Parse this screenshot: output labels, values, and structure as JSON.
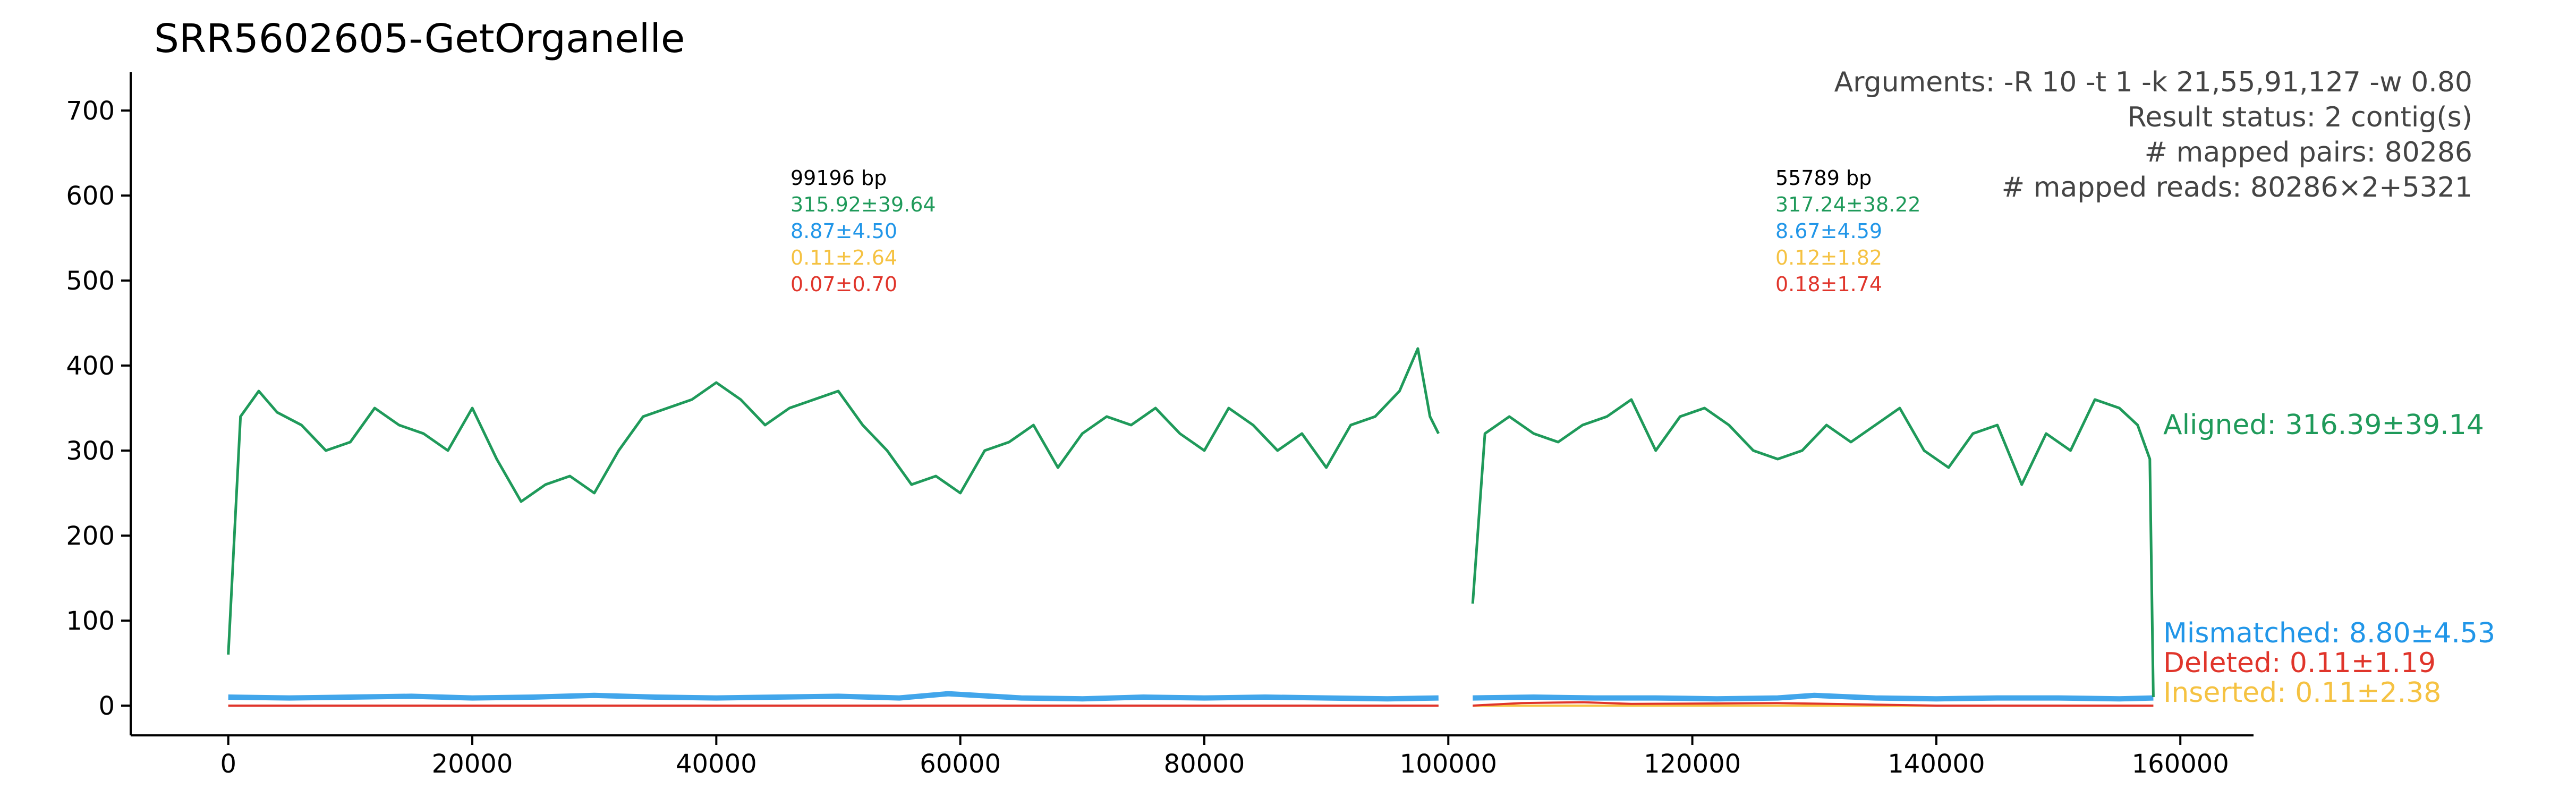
{
  "title": "SRR5602605-GetOrganelle",
  "info": {
    "arguments": "Arguments: -R 10 -t 1 -k 21,55,91,127 -w 0.80",
    "result_status": "Result status: 2 contig(s)",
    "mapped_pairs": "# mapped pairs: 80286",
    "mapped_reads": "# mapped reads: 80286×2+5321"
  },
  "contigs": [
    {
      "length": "99196 bp",
      "aligned": "315.92±39.64",
      "mismatched": "8.87±4.50",
      "inserted": "0.11±2.64",
      "deleted": "0.07±0.70"
    },
    {
      "length": "55789 bp",
      "aligned": "317.24±38.22",
      "mismatched": "8.67±4.59",
      "inserted": "0.12±1.82",
      "deleted": "0.18±1.74"
    }
  ],
  "legend": {
    "aligned": "Aligned: 316.39±39.14",
    "mismatched": "Mismatched: 8.80±4.53",
    "deleted": "Deleted: 0.11±1.19",
    "inserted": "Inserted: 0.11±2.38"
  },
  "colors": {
    "aligned": "#1f9a5a",
    "mismatched": "#2196e8",
    "deleted": "#e0352b",
    "inserted": "#f5c242",
    "axis": "#000000",
    "info_text": "#444444"
  },
  "chart_data": {
    "type": "scatter",
    "title": "SRR5602605-GetOrganelle",
    "xlabel": "",
    "ylabel": "",
    "xlim": [
      -8000,
      166000
    ],
    "ylim": [
      -35,
      745
    ],
    "xticks": [
      0,
      20000,
      40000,
      60000,
      80000,
      100000,
      120000,
      140000,
      160000
    ],
    "yticks": [
      0,
      100,
      200,
      300,
      400,
      500,
      600,
      700
    ],
    "grid": false,
    "contig_ranges": [
      [
        0,
        99196
      ],
      [
        102000,
        157789
      ]
    ],
    "series": [
      {
        "name": "Aligned: 316.39±39.14",
        "color": "#1f9a5a",
        "x": [
          0,
          1000,
          2500,
          4000,
          6000,
          8000,
          10000,
          12000,
          14000,
          16000,
          18000,
          20000,
          22000,
          24000,
          26000,
          28000,
          30000,
          32000,
          34000,
          36000,
          38000,
          40000,
          42000,
          44000,
          46000,
          48000,
          50000,
          52000,
          54000,
          56000,
          58000,
          60000,
          62000,
          64000,
          66000,
          68000,
          70000,
          72000,
          74000,
          76000,
          78000,
          80000,
          82000,
          84000,
          86000,
          88000,
          90000,
          92000,
          94000,
          96000,
          97500,
          98500,
          99196,
          102000,
          103000,
          105000,
          107000,
          109000,
          111000,
          113000,
          115000,
          117000,
          119000,
          121000,
          123000,
          125000,
          127000,
          129000,
          131000,
          133000,
          135000,
          137000,
          139000,
          141000,
          143000,
          145000,
          147000,
          149000,
          151000,
          153000,
          155000,
          156500,
          157500,
          157789
        ],
        "values": [
          60,
          340,
          370,
          345,
          330,
          300,
          310,
          350,
          330,
          320,
          300,
          350,
          290,
          240,
          260,
          270,
          250,
          300,
          340,
          350,
          360,
          380,
          360,
          330,
          350,
          360,
          370,
          330,
          300,
          260,
          270,
          250,
          300,
          310,
          330,
          280,
          320,
          340,
          330,
          350,
          320,
          300,
          350,
          330,
          300,
          320,
          280,
          330,
          340,
          370,
          420,
          340,
          320,
          120,
          320,
          340,
          320,
          310,
          330,
          340,
          360,
          300,
          340,
          350,
          330,
          300,
          290,
          300,
          330,
          310,
          330,
          350,
          300,
          280,
          320,
          330,
          260,
          320,
          300,
          360,
          350,
          330,
          290,
          10
        ]
      },
      {
        "name": "Mismatched: 8.80±4.53",
        "color": "#2196e8",
        "x": [
          0,
          5000,
          10000,
          15000,
          20000,
          25000,
          30000,
          35000,
          40000,
          45000,
          50000,
          55000,
          59000,
          65000,
          70000,
          75000,
          80000,
          85000,
          90000,
          95000,
          99196,
          102000,
          107000,
          112000,
          117000,
          122000,
          127000,
          130000,
          135000,
          140000,
          145000,
          150000,
          155000,
          157789
        ],
        "values": [
          10,
          9,
          10,
          11,
          9,
          10,
          12,
          10,
          9,
          10,
          11,
          9,
          14,
          9,
          8,
          10,
          9,
          10,
          9,
          8,
          9,
          9,
          10,
          9,
          9,
          8,
          9,
          12,
          9,
          8,
          9,
          9,
          8,
          9
        ]
      },
      {
        "name": "Deleted: 0.11±1.19",
        "color": "#e0352b",
        "x": [
          0,
          20000,
          40000,
          60000,
          80000,
          99196,
          102000,
          106000,
          111000,
          115000,
          127000,
          140000,
          157789
        ],
        "values": [
          0,
          0,
          0,
          0,
          0,
          0,
          0,
          3,
          4,
          2,
          3,
          0,
          0
        ]
      },
      {
        "name": "Inserted: 0.11±2.38",
        "color": "#f5c242",
        "x": [
          0,
          20000,
          40000,
          60000,
          80000,
          99196,
          102000,
          120000,
          140000,
          157789
        ],
        "values": [
          0,
          0,
          0,
          0,
          0,
          0,
          0,
          0,
          0,
          0
        ]
      }
    ]
  }
}
